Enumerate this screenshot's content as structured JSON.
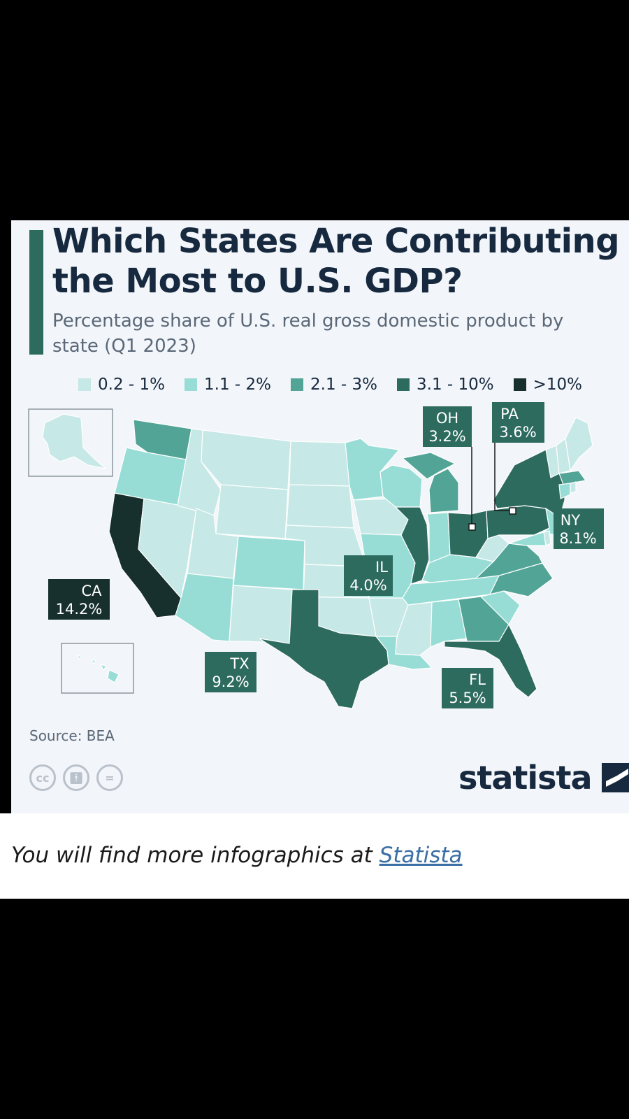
{
  "title": "Which States Are Contributing the Most to U.S. GDP?",
  "subtitle": "Percentage share of U.S. real gross domestic product by state (Q1 2023)",
  "legend": [
    {
      "label": "0.2 - 1%",
      "color": "#c6e8e6"
    },
    {
      "label": "1.1 - 2%",
      "color": "#97ddd5"
    },
    {
      "label": "2.1 - 3%",
      "color": "#52a596"
    },
    {
      "label": "3.1 - 10%",
      "color": "#2d6b5f"
    },
    {
      "label": ">10%",
      "color": "#17302d"
    }
  ],
  "callouts": [
    {
      "state": "CA",
      "value": "14.2%",
      "share": 14.2
    },
    {
      "state": "TX",
      "value": "9.2%",
      "share": 9.2
    },
    {
      "state": "NY",
      "value": "8.1%",
      "share": 8.1
    },
    {
      "state": "FL",
      "value": "5.5%",
      "share": 5.5
    },
    {
      "state": "IL",
      "value": "4.0%",
      "share": 4.0
    },
    {
      "state": "PA",
      "value": "3.6%",
      "share": 3.6
    },
    {
      "state": "OH",
      "value": "3.2%",
      "share": 3.2
    }
  ],
  "source": "Source: BEA",
  "brand": "statista",
  "license_icons": [
    "cc-icon",
    "attribution-icon",
    "no-derivatives-icon"
  ],
  "footer": {
    "text": "You will find more infographics at ",
    "link_text": "Statista"
  }
}
